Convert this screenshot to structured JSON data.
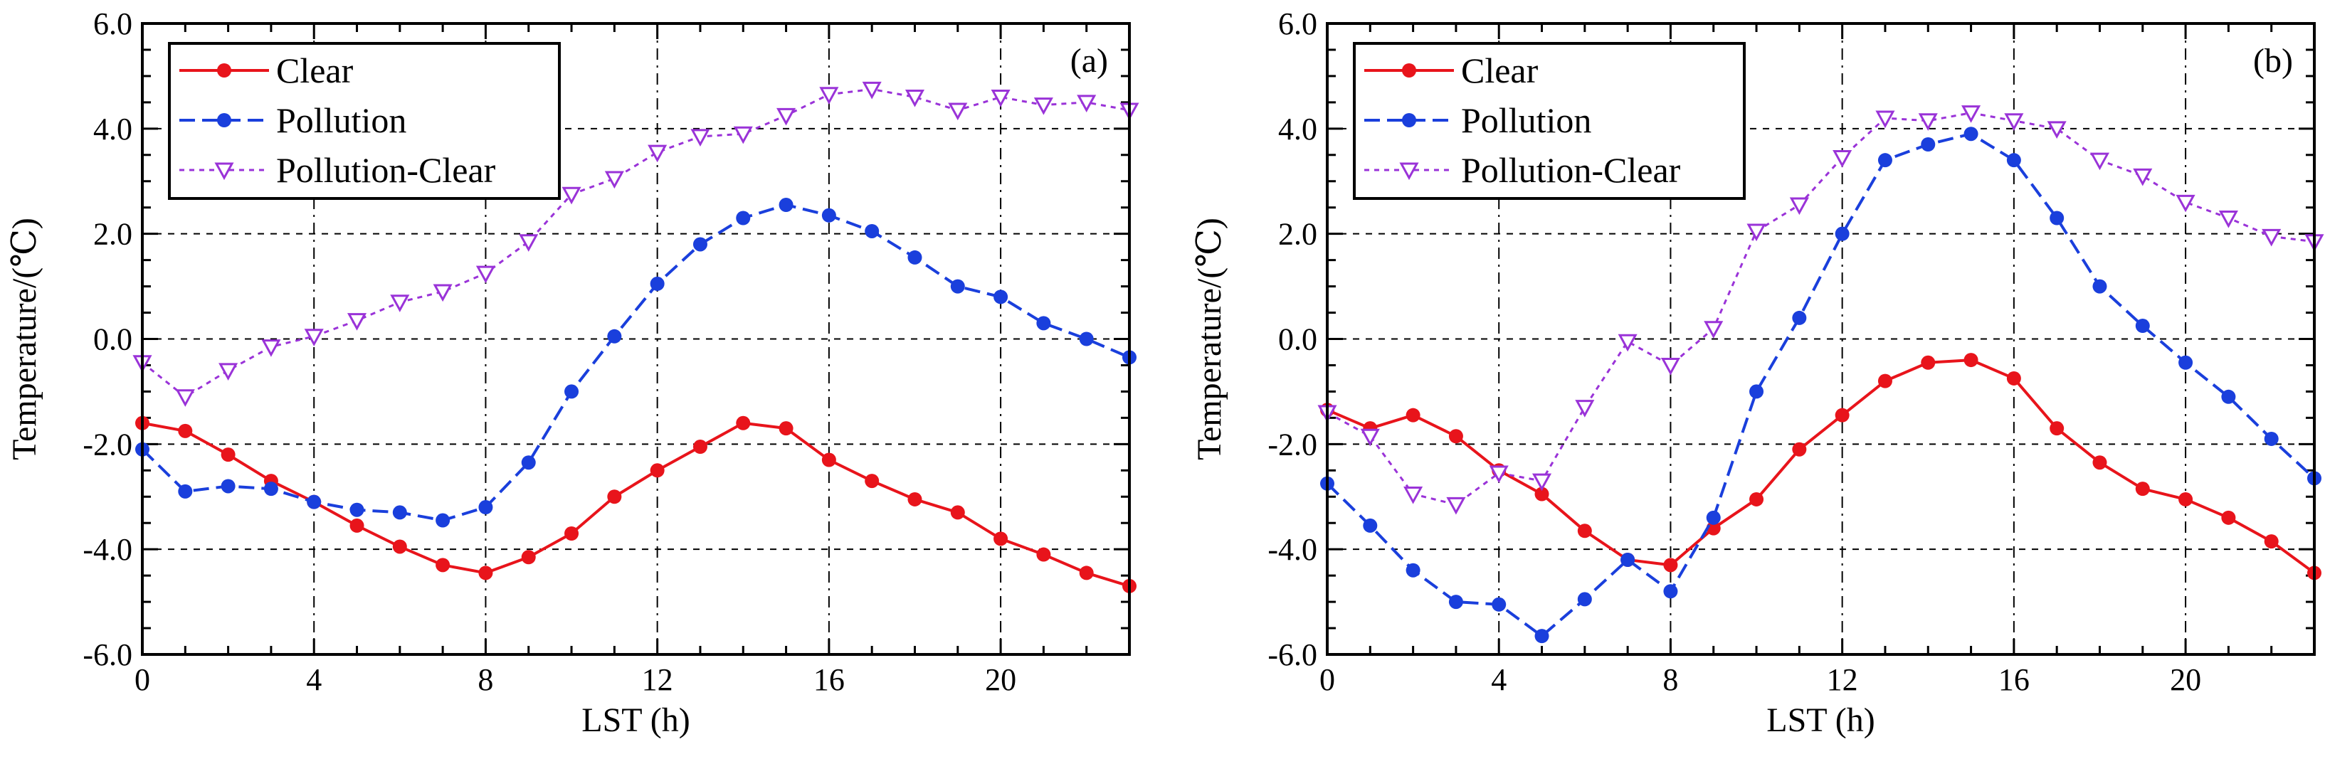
{
  "chart_data": [
    {
      "type": "line",
      "panel_label": "(a)",
      "xlabel": "LST (h)",
      "ylabel": "Temperature/(℃)",
      "xlim": [
        0,
        23
      ],
      "ylim": [
        -6,
        6
      ],
      "x_ticks": [
        "0",
        "4",
        "8",
        "12",
        "16",
        "20"
      ],
      "y_ticks": [
        "-6.0",
        "-4.0",
        "-2.0",
        "0.0",
        "2.0",
        "4.0",
        "6.0"
      ],
      "grid": true,
      "legend_position": "top-left",
      "x": [
        0,
        1,
        2,
        3,
        4,
        5,
        6,
        7,
        8,
        9,
        10,
        11,
        12,
        13,
        14,
        15,
        16,
        17,
        18,
        19,
        20,
        21,
        22,
        23
      ],
      "series": [
        {
          "name": "Clear",
          "color": "#e8141b",
          "dash": "solid",
          "marker": "circle",
          "values": [
            -1.6,
            -1.75,
            -2.2,
            -2.7,
            -3.1,
            -3.55,
            -3.95,
            -4.3,
            -4.45,
            -4.15,
            -3.7,
            -3.0,
            -2.5,
            -2.05,
            -1.6,
            -1.7,
            -2.3,
            -2.7,
            -3.05,
            -3.3,
            -3.8,
            -4.1,
            -4.45,
            -4.7
          ]
        },
        {
          "name": "Pollution",
          "color": "#1a3fdc",
          "dash": "dash",
          "marker": "circle",
          "values": [
            -2.1,
            -2.9,
            -2.8,
            -2.85,
            -3.1,
            -3.25,
            -3.3,
            -3.45,
            -3.2,
            -2.35,
            -1.0,
            0.05,
            1.05,
            1.8,
            2.3,
            2.55,
            2.35,
            2.05,
            1.55,
            1.0,
            0.8,
            0.3,
            0.0,
            -0.35
          ]
        },
        {
          "name": "Pollution-Clear",
          "color": "#9a33d8",
          "dash": "dot",
          "marker": "triangle-down",
          "values": [
            -0.45,
            -1.1,
            -0.6,
            -0.15,
            0.05,
            0.35,
            0.7,
            0.9,
            1.25,
            1.85,
            2.75,
            3.05,
            3.55,
            3.85,
            3.9,
            4.25,
            4.65,
            4.75,
            4.6,
            4.35,
            4.6,
            4.45,
            4.5,
            4.35
          ]
        }
      ]
    },
    {
      "type": "line",
      "panel_label": "(b)",
      "xlabel": "LST (h)",
      "ylabel": "Temperature/(℃)",
      "xlim": [
        0,
        23
      ],
      "ylim": [
        -6,
        6
      ],
      "x_ticks": [
        "0",
        "4",
        "8",
        "12",
        "16",
        "20"
      ],
      "y_ticks": [
        "-6.0",
        "-4.0",
        "-2.0",
        "0.0",
        "2.0",
        "4.0",
        "6.0"
      ],
      "grid": true,
      "legend_position": "top-left",
      "x": [
        0,
        1,
        2,
        3,
        4,
        5,
        6,
        7,
        8,
        9,
        10,
        11,
        12,
        13,
        14,
        15,
        16,
        17,
        18,
        19,
        20,
        21,
        22,
        23
      ],
      "series": [
        {
          "name": "Clear",
          "color": "#e8141b",
          "dash": "solid",
          "marker": "circle",
          "values": [
            -1.35,
            -1.7,
            -1.45,
            -1.85,
            -2.5,
            -2.95,
            -3.65,
            -4.2,
            -4.3,
            -3.6,
            -3.05,
            -2.1,
            -1.45,
            -0.8,
            -0.45,
            -0.4,
            -0.75,
            -1.7,
            -2.35,
            -2.85,
            -3.05,
            -3.4,
            -3.85,
            -4.45
          ]
        },
        {
          "name": "Pollution",
          "color": "#1a3fdc",
          "dash": "dash",
          "marker": "circle",
          "values": [
            -2.75,
            -3.55,
            -4.4,
            -5.0,
            -5.05,
            -5.65,
            -4.95,
            -4.2,
            -4.8,
            -3.4,
            -1.0,
            0.4,
            2.0,
            3.4,
            3.7,
            3.9,
            3.4,
            2.3,
            1.0,
            0.25,
            -0.45,
            -1.1,
            -1.9,
            -2.65
          ]
        },
        {
          "name": "Pollution-Clear",
          "color": "#9a33d8",
          "dash": "dot",
          "marker": "triangle-down",
          "values": [
            -1.4,
            -1.85,
            -2.95,
            -3.15,
            -2.55,
            -2.7,
            -1.3,
            -0.05,
            -0.5,
            0.2,
            2.05,
            2.55,
            3.45,
            4.2,
            4.15,
            4.3,
            4.15,
            4.0,
            3.4,
            3.1,
            2.6,
            2.3,
            1.95,
            1.85
          ]
        }
      ]
    }
  ]
}
